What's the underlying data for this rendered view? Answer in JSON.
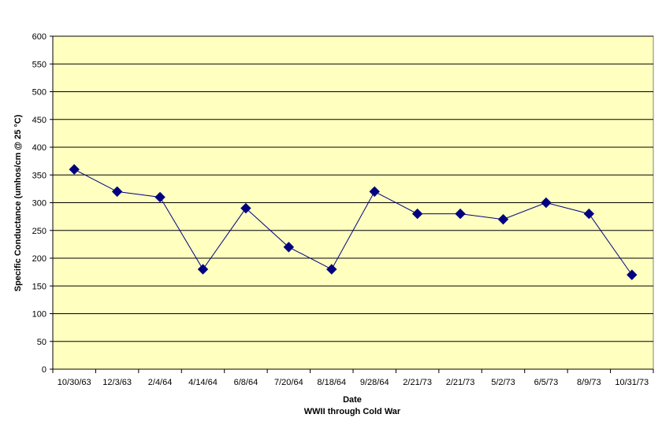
{
  "chart_data": {
    "type": "line",
    "xlabel": "Date",
    "xlabel_sub": "WWII through Cold War",
    "ylabel": "Specific Conductance (umhos/cm @ 25 °C)",
    "ylim": [
      0,
      600
    ],
    "yticks": [
      0,
      50,
      100,
      150,
      200,
      250,
      300,
      350,
      400,
      450,
      500,
      550,
      600
    ],
    "categories": [
      "10/30/63",
      "12/3/63",
      "2/4/64",
      "4/14/64",
      "6/8/64",
      "7/20/64",
      "8/18/64",
      "9/28/64",
      "2/21/73",
      "2/21/73",
      "5/2/73",
      "6/5/73",
      "8/9/73",
      "10/31/73"
    ],
    "series": [
      {
        "values": [
          360,
          320,
          310,
          180,
          290,
          220,
          180,
          320,
          280,
          280,
          270,
          300,
          280,
          170
        ]
      }
    ],
    "grid": true,
    "legend": "none",
    "colors": {
      "plot_bg": "#ffffc0",
      "line": "#000080",
      "marker": "#000080",
      "grid": "#000000"
    }
  }
}
